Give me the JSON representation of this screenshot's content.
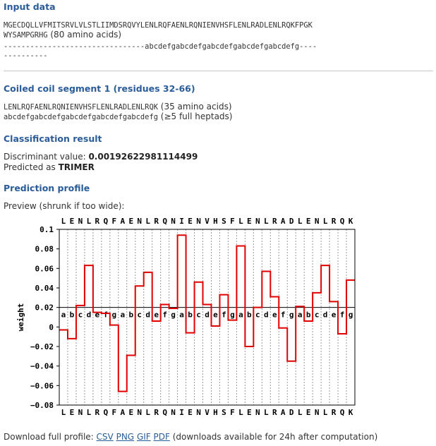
{
  "input": {
    "heading": "Input data",
    "seq_line1": "MGECDQLLVFMITSRVLVLSTLIIMDSRQVYLENLRQFAENLRQNIENVHSFLENLRADLENLRQKFPGK",
    "seq_line2": "WYSAMPGRHG",
    "seq_line2_note": " (80 amino acids)",
    "register_line1": "--------------------------------abcdefgabcdefgabcdefgabcdefgabcdefg----",
    "register_line2": "----------"
  },
  "segment": {
    "heading": "Coiled coil segment 1 (residues 32-66)",
    "sequence": "LENLRQFAENLRQNIENVHSFLENLRADLENLRQK",
    "sequence_note": " (35 amino acids)",
    "register": "abcdefgabcdefgabcdefgabcdefgabcdefg",
    "register_note": " (≥5 full heptads)"
  },
  "classification": {
    "heading": "Classification result",
    "discriminant_label": "Discriminant value: ",
    "discriminant_value": "0.00192622981114499",
    "predicted_label": "Predicted as ",
    "predicted_value": "TRIMER"
  },
  "profile": {
    "heading": "Prediction profile",
    "preview_text": "Preview (shrunk if too wide):"
  },
  "download": {
    "label": "Download full profile: ",
    "links": [
      "CSV",
      "PNG",
      "GIF",
      "PDF"
    ],
    "note": " (downloads available for 24h after computation)"
  },
  "chart_data": {
    "type": "line",
    "ylabel": "weight",
    "ylim": [
      -0.08,
      0.1
    ],
    "yticks": [
      "0.1",
      "0.08",
      "0.06",
      "0.04",
      "0.02",
      "0",
      "−0.02",
      "−0.04",
      "−0.06",
      "−0.08"
    ],
    "ytick_values": [
      0.1,
      0.08,
      0.06,
      0.04,
      0.02,
      0,
      -0.02,
      -0.04,
      -0.06,
      -0.08
    ],
    "residues": [
      "L",
      "E",
      "N",
      "L",
      "R",
      "Q",
      "F",
      "A",
      "E",
      "N",
      "L",
      "R",
      "Q",
      "N",
      "I",
      "E",
      "N",
      "V",
      "H",
      "S",
      "F",
      "L",
      "E",
      "N",
      "L",
      "R",
      "A",
      "D",
      "L",
      "E",
      "N",
      "L",
      "R",
      "Q",
      "K"
    ],
    "positions": [
      "a",
      "b",
      "c",
      "d",
      "e",
      "f",
      "g",
      "a",
      "b",
      "c",
      "d",
      "e",
      "f",
      "g",
      "a",
      "b",
      "c",
      "d",
      "e",
      "f",
      "g",
      "a",
      "b",
      "c",
      "d",
      "e",
      "f",
      "g",
      "a",
      "b",
      "c",
      "d",
      "e",
      "f",
      "g"
    ],
    "values": [
      -0.003,
      -0.012,
      0.022,
      0.063,
      0.015,
      0.014,
      0.002,
      -0.066,
      -0.029,
      0.042,
      0.056,
      0.006,
      0.023,
      0.019,
      0.094,
      -0.006,
      0.046,
      0.023,
      0.001,
      0.033,
      0.007,
      0.083,
      -0.02,
      0.02,
      0.057,
      0.031,
      -0.001,
      -0.035,
      0.021,
      0.006,
      0.035,
      0.063,
      0.026,
      -0.007,
      0.048
    ],
    "reference_line": 0.02,
    "grid": "vertical dotted",
    "colors": {
      "series": "#e00000",
      "axis": "#000000",
      "grid": "#999999"
    }
  }
}
